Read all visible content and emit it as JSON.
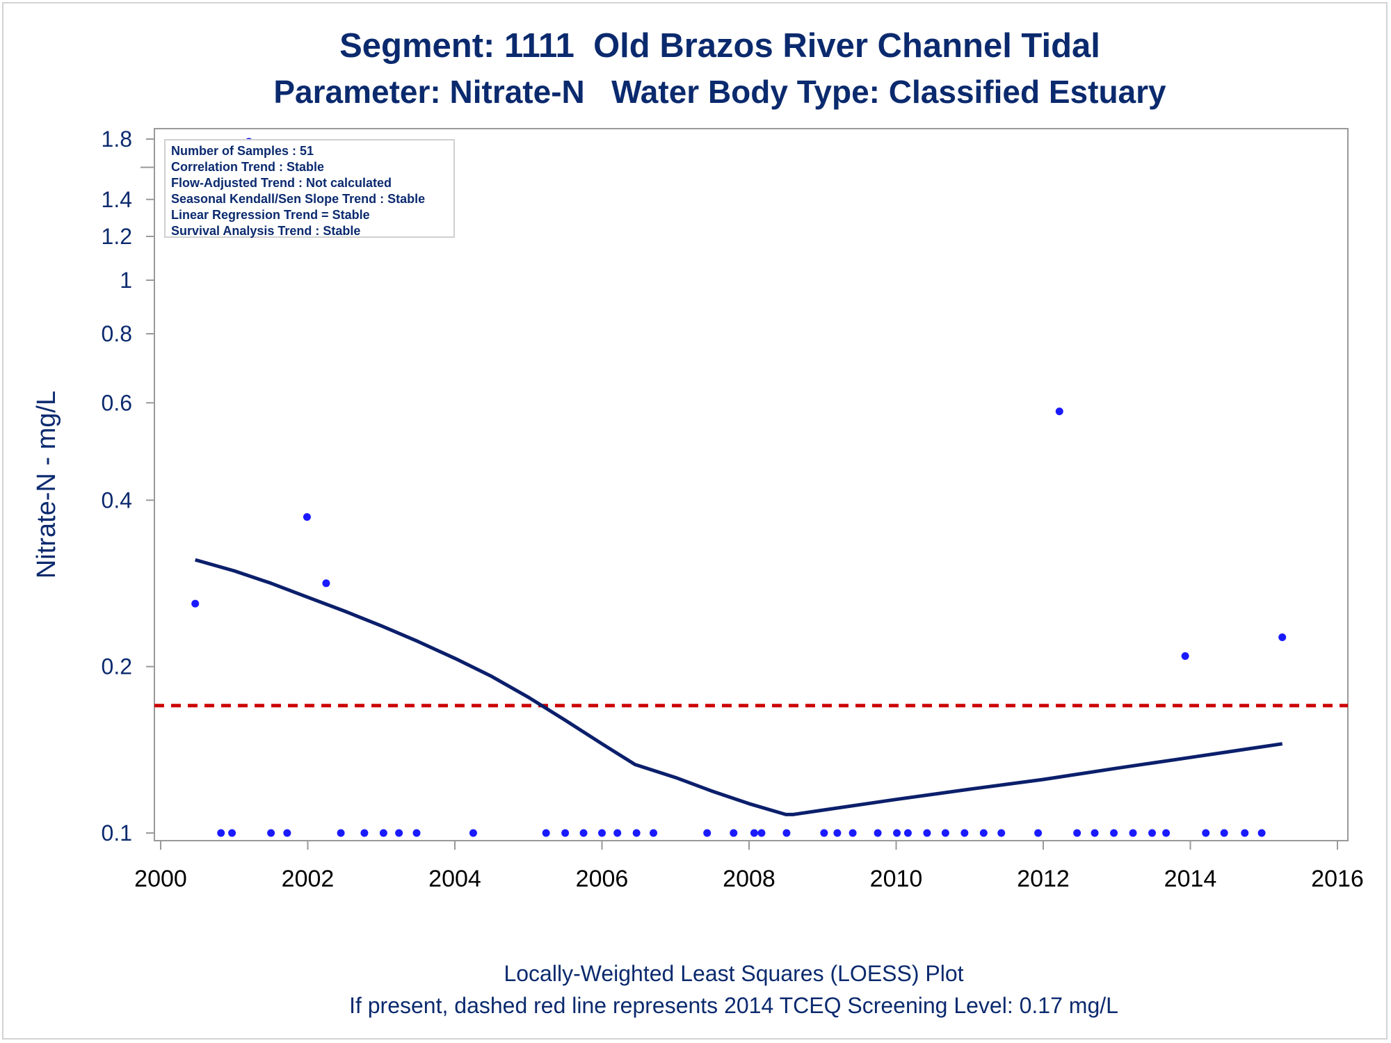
{
  "title_line1": "Segment: 1111  Old Brazos River Channel Tidal",
  "title_line2": "Parameter: Nitrate-N   Water Body Type: Classified Estuary",
  "footer_line1": "Locally-Weighted Least Squares (LOESS) Plot",
  "footer_line2": "If present, dashed red line represents 2014 TCEQ Screening Level: 0.17 mg/L",
  "stats": [
    "Number of Samples : 51",
    "Correlation Trend : Stable",
    "Flow-Adjusted Trend : Not calculated",
    "Seasonal Kendall/Sen Slope Trend : Stable",
    "Linear Regression Trend = Stable",
    "Survival Analysis Trend : Stable"
  ],
  "colors": {
    "points": "#1a1aff",
    "loess": "#0b1f6b",
    "screening": "#cc0000",
    "text": "#0b2a6e",
    "axis": "#999999"
  },
  "chart_data": {
    "type": "scatter",
    "ylabel": "Nitrate-N - mg/L",
    "xlabel": "",
    "xlim": [
      2000,
      2016
    ],
    "ylim": [
      0.1,
      1.8
    ],
    "yscale": "log",
    "x_ticks": [
      2000,
      2002,
      2004,
      2006,
      2008,
      2010,
      2012,
      2014,
      2016
    ],
    "y_ticks": [
      0.1,
      0.2,
      0.4,
      0.6,
      0.8,
      1,
      1.2,
      1.4,
      1.8
    ],
    "y_tick_labels": [
      "0.1",
      "0.2",
      "0.4",
      "0.6",
      "0.8",
      "1",
      "1.2",
      "1.4",
      "1.8"
    ],
    "y_minor_ticks": [
      1.6
    ],
    "screening_level": 0.17,
    "samples": [
      [
        2000.47,
        0.26
      ],
      [
        2000.82,
        0.1
      ],
      [
        2000.97,
        0.1
      ],
      [
        2001.5,
        0.1
      ],
      [
        2001.72,
        0.1
      ],
      [
        2001.99,
        0.373
      ],
      [
        2002.25,
        0.283
      ],
      [
        2002.45,
        0.1
      ],
      [
        2002.77,
        0.1
      ],
      [
        2003.03,
        0.1
      ],
      [
        2003.24,
        0.1
      ],
      [
        2003.48,
        0.1
      ],
      [
        2004.25,
        0.1
      ],
      [
        2005.24,
        0.1
      ],
      [
        2005.5,
        0.1
      ],
      [
        2005.75,
        0.1
      ],
      [
        2006.0,
        0.1
      ],
      [
        2006.21,
        0.1
      ],
      [
        2006.47,
        0.1
      ],
      [
        2006.7,
        0.1
      ],
      [
        2007.43,
        0.1
      ],
      [
        2007.79,
        0.1
      ],
      [
        2008.07,
        0.1
      ],
      [
        2008.17,
        0.1
      ],
      [
        2008.51,
        0.1
      ],
      [
        2009.02,
        0.1
      ],
      [
        2009.2,
        0.1
      ],
      [
        2009.41,
        0.1
      ],
      [
        2009.75,
        0.1
      ],
      [
        2010.01,
        0.1
      ],
      [
        2010.16,
        0.1
      ],
      [
        2010.42,
        0.1
      ],
      [
        2010.67,
        0.1
      ],
      [
        2010.93,
        0.1
      ],
      [
        2011.19,
        0.1
      ],
      [
        2011.43,
        0.1
      ],
      [
        2011.93,
        0.1
      ],
      [
        2012.22,
        0.579
      ],
      [
        2012.46,
        0.1
      ],
      [
        2012.7,
        0.1
      ],
      [
        2012.96,
        0.1
      ],
      [
        2013.22,
        0.1
      ],
      [
        2013.48,
        0.1
      ],
      [
        2013.67,
        0.1
      ],
      [
        2013.93,
        0.209
      ],
      [
        2014.21,
        0.1
      ],
      [
        2014.46,
        0.1
      ],
      [
        2014.74,
        0.1
      ],
      [
        2014.97,
        0.1
      ],
      [
        2015.25,
        0.226
      ],
      [
        2001.2,
        1.78
      ]
    ],
    "loess_x": [
      2000.47,
      2001.0,
      2001.5,
      2002.0,
      2002.5,
      2003.0,
      2003.5,
      2004.0,
      2004.5,
      2005.0,
      2005.5,
      2006.0,
      2006.45,
      2007.0,
      2007.5,
      2008.0,
      2008.5,
      2008.6,
      2009.0,
      2010.0,
      2011.0,
      2012.0,
      2013.0,
      2014.0,
      2015.25
    ],
    "loess_y": [
      0.312,
      0.298,
      0.283,
      0.267,
      0.252,
      0.237,
      0.222,
      0.207,
      0.192,
      0.176,
      0.16,
      0.145,
      0.133,
      0.126,
      0.119,
      0.113,
      0.108,
      0.108,
      0.11,
      0.115,
      0.12,
      0.125,
      0.131,
      0.137,
      0.145
    ]
  }
}
